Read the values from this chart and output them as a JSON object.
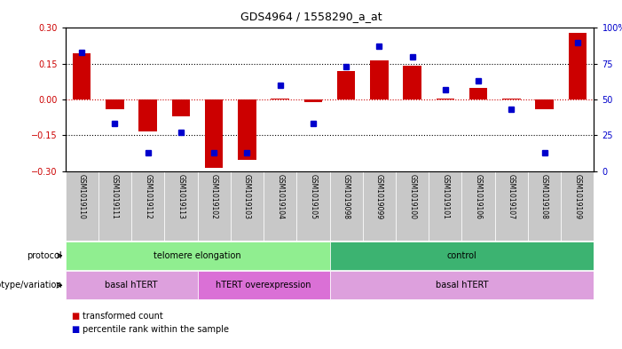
{
  "title": "GDS4964 / 1558290_a_at",
  "samples": [
    "GSM1019110",
    "GSM1019111",
    "GSM1019112",
    "GSM1019113",
    "GSM1019102",
    "GSM1019103",
    "GSM1019104",
    "GSM1019105",
    "GSM1019098",
    "GSM1019099",
    "GSM1019100",
    "GSM1019101",
    "GSM1019106",
    "GSM1019107",
    "GSM1019108",
    "GSM1019109"
  ],
  "red_bars": [
    0.195,
    -0.04,
    -0.135,
    -0.07,
    -0.285,
    -0.255,
    0.005,
    -0.01,
    0.12,
    0.165,
    0.14,
    0.005,
    0.05,
    0.005,
    -0.04,
    0.28
  ],
  "blue_dot_percentile": [
    83,
    33,
    13,
    27,
    13,
    13,
    60,
    33,
    73,
    87,
    80,
    57,
    63,
    43,
    13,
    90
  ],
  "ylim_left": [
    -0.3,
    0.3
  ],
  "ylim_right": [
    0,
    100
  ],
  "yticks_left": [
    -0.3,
    -0.15,
    0,
    0.15,
    0.3
  ],
  "yticks_right": [
    0,
    25,
    50,
    75,
    100
  ],
  "protocol_groups": [
    {
      "label": "telomere elongation",
      "start": 0,
      "end": 8,
      "color": "#90EE90"
    },
    {
      "label": "control",
      "start": 8,
      "end": 16,
      "color": "#3CB371"
    }
  ],
  "genotype_groups": [
    {
      "label": "basal hTERT",
      "start": 0,
      "end": 4,
      "color": "#DDA0DD"
    },
    {
      "label": "hTERT overexpression",
      "start": 4,
      "end": 8,
      "color": "#DA70D6"
    },
    {
      "label": "basal hTERT",
      "start": 8,
      "end": 16,
      "color": "#DDA0DD"
    }
  ],
  "legend_red": "transformed count",
  "legend_blue": "percentile rank within the sample",
  "bar_color": "#CC0000",
  "dot_color": "#0000CC",
  "zero_line_color": "#CC0000",
  "grid_color": "#000000",
  "background_color": "#FFFFFF",
  "xlabel_bg": "#C8C8C8"
}
